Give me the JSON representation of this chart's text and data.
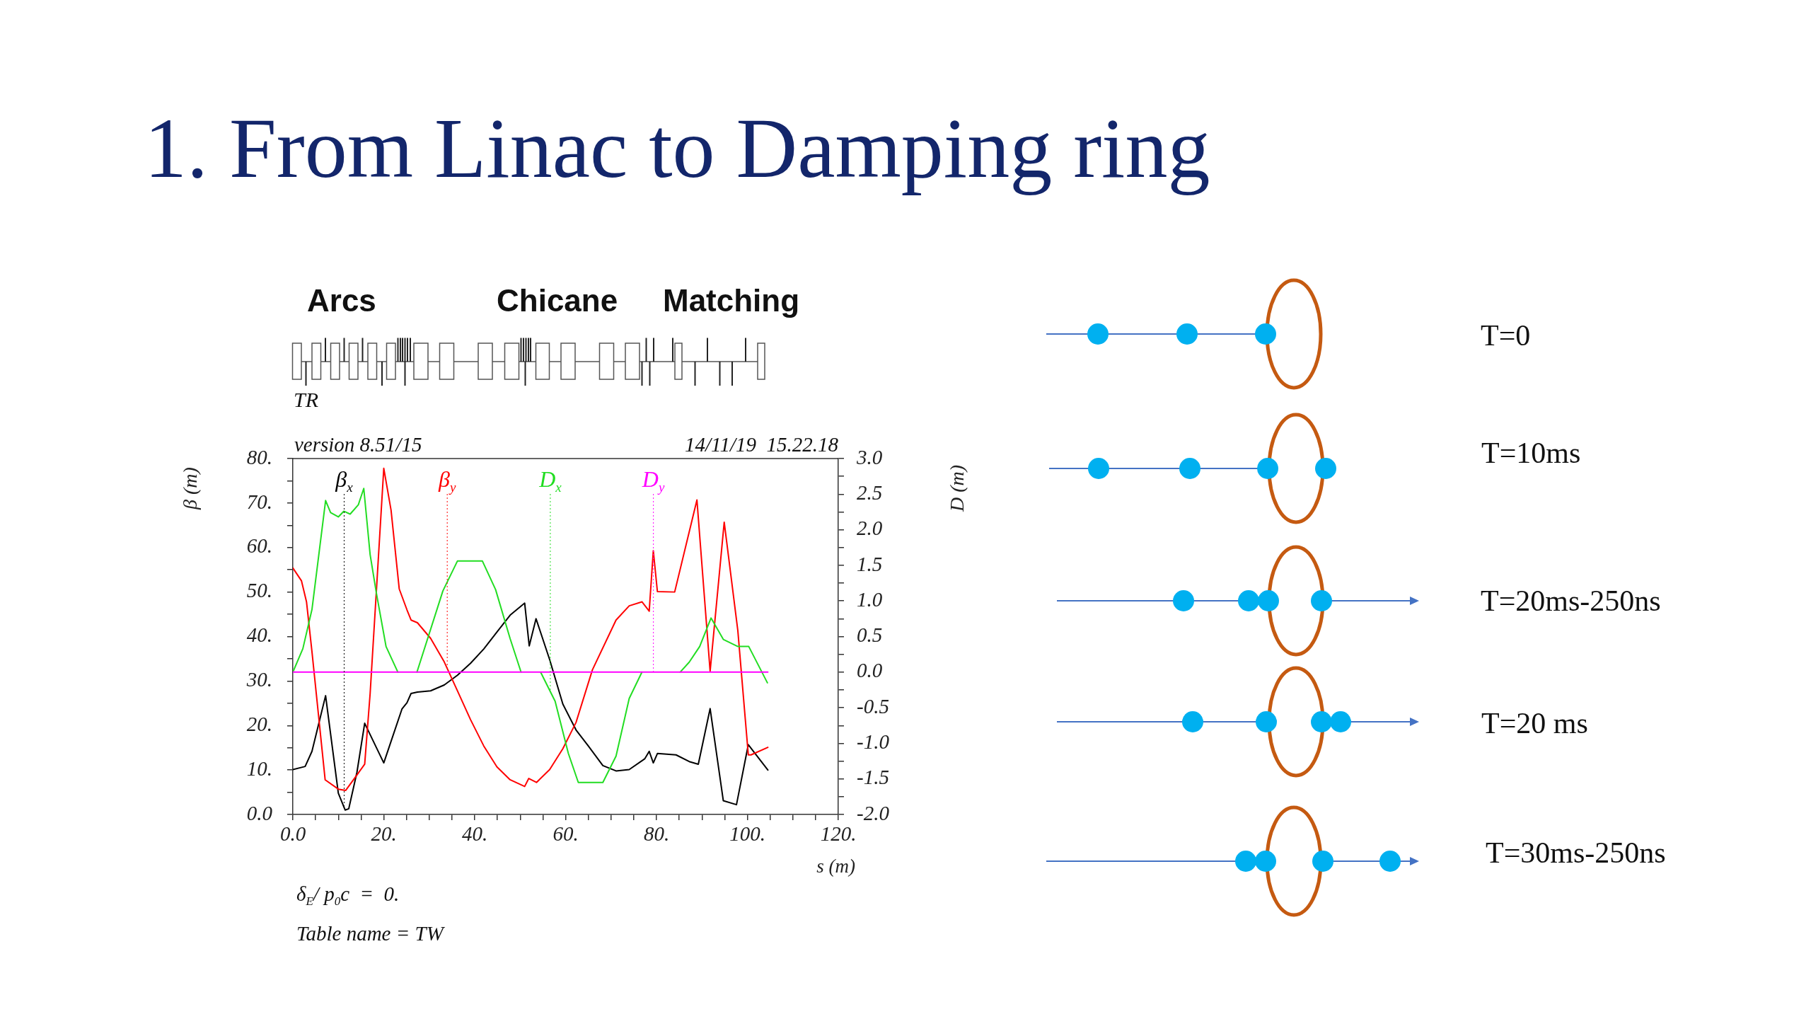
{
  "chart_data": {
    "type": "line",
    "title": "1. From Linac to Damping ring",
    "xlabel": "s (m)",
    "ylabel": "β (m)",
    "y2label": "D (m)",
    "marker": "none",
    "xlim": [
      0,
      120
    ],
    "xticks": [
      {
        "value": 0,
        "label": "0.0"
      },
      {
        "value": 5,
        "label": null
      },
      {
        "value": 10,
        "label": null
      },
      {
        "value": 15,
        "label": null
      },
      {
        "value": 20,
        "label": "20."
      },
      {
        "value": 25,
        "label": null
      },
      {
        "value": 30,
        "label": null
      },
      {
        "value": 35,
        "label": null
      },
      {
        "value": 40,
        "label": "40."
      },
      {
        "value": 45,
        "label": null
      },
      {
        "value": 50,
        "label": null
      },
      {
        "value": 55,
        "label": null
      },
      {
        "value": 60,
        "label": "60."
      },
      {
        "value": 65,
        "label": null
      },
      {
        "value": 70,
        "label": null
      },
      {
        "value": 75,
        "label": null
      },
      {
        "value": 80,
        "label": "80."
      },
      {
        "value": 85,
        "label": null
      },
      {
        "value": 90,
        "label": null
      },
      {
        "value": 95,
        "label": null
      },
      {
        "value": 100,
        "label": "100."
      },
      {
        "value": 105,
        "label": null
      },
      {
        "value": 110,
        "label": null
      },
      {
        "value": 115,
        "label": null
      },
      {
        "value": 120,
        "label": "120."
      }
    ],
    "ylim": [
      0,
      80
    ],
    "yticks": [
      {
        "value": 0,
        "label": "0.0"
      },
      {
        "value": 5,
        "label": null
      },
      {
        "value": 10,
        "label": "10."
      },
      {
        "value": 15,
        "label": null
      },
      {
        "value": 20,
        "label": "20."
      },
      {
        "value": 25,
        "label": null
      },
      {
        "value": 30,
        "label": "30."
      },
      {
        "value": 35,
        "label": null
      },
      {
        "value": 40,
        "label": "40."
      },
      {
        "value": 45,
        "label": null
      },
      {
        "value": 50,
        "label": "50."
      },
      {
        "value": 55,
        "label": null
      },
      {
        "value": 60,
        "label": "60."
      },
      {
        "value": 65,
        "label": null
      },
      {
        "value": 70,
        "label": "70."
      },
      {
        "value": 75,
        "label": null
      },
      {
        "value": 80,
        "label": "80."
      }
    ],
    "y2lim": [
      -2,
      3
    ],
    "y2ticks": [
      {
        "value": -2,
        "label": "-2.0"
      },
      {
        "value": -1.75,
        "label": null
      },
      -1.5,
      {
        "value": -1.25,
        "label": null
      },
      {
        "value": -1,
        "label": "-1.0"
      },
      {
        "value": -0.75,
        "label": null
      },
      -0.5,
      {
        "value": -0.25,
        "label": null
      },
      {
        "value": 0,
        "label": "0.0"
      },
      {
        "value": 0.25,
        "label": null
      },
      0.5,
      {
        "value": 0.75,
        "label": null
      },
      {
        "value": 1,
        "label": "1.0"
      },
      {
        "value": 1.25,
        "label": null
      },
      1.5,
      {
        "value": 1.75,
        "label": null
      },
      {
        "value": 2,
        "label": "2.0"
      },
      {
        "value": 2.25,
        "label": null
      },
      2.5,
      {
        "value": 2.75,
        "label": null
      },
      {
        "value": 3,
        "label": "3.0"
      }
    ],
    "series": [
      {
        "name": "β$_{x}$",
        "color": "#000000",
        "x": [
          0,
          2.7,
          4.2,
          7.2,
          10,
          11.5,
          12.3,
          14.1,
          15.8,
          20,
          24,
          25.1,
          26,
          27.4,
          30.3,
          33.3,
          36.2,
          39.1,
          42,
          44.9,
          47.8,
          51,
          52,
          53.5,
          56.5,
          59.4,
          62.3,
          65,
          68.2,
          71.1,
          74,
          77.4,
          78.4,
          79.3,
          80.2,
          84.3,
          87.2,
          89.2,
          91.8,
          94.7,
          97.6,
          100.2,
          104.5
        ],
        "values": [
          10.1,
          10.8,
          14.2,
          26.7,
          4.8,
          1.0,
          1.3,
          9.5,
          20.5,
          11.6,
          23.7,
          25.1,
          27.2,
          27.5,
          27.8,
          29.1,
          31.3,
          34,
          37.2,
          41,
          44.8,
          47.5,
          37.9,
          44,
          34.8,
          24.8,
          19,
          15.4,
          11,
          9.8,
          10.1,
          12.5,
          14.2,
          11.6,
          13.7,
          13.4,
          11.9,
          11.3,
          23.8,
          3.1,
          2.2,
          15.7,
          10
        ]
      },
      {
        "name": "β$_{y}$",
        "color": "#ff0000",
        "x": [
          0,
          1.9,
          3,
          4.2,
          7.1,
          10,
          11.6,
          14.1,
          15.8,
          17,
          18.4,
          20,
          21.6,
          23.4,
          25.1,
          26,
          27.4,
          30.3,
          33.3,
          36.2,
          39.1,
          42,
          44.9,
          47.8,
          51,
          51.9,
          53.6,
          56.5,
          59.4,
          62.3,
          65.9,
          71.1,
          74,
          76.8,
          78.4,
          79.3,
          80.2,
          84,
          88.9,
          91.8,
          94.9,
          97.9,
          100.2,
          100.8,
          104.5
        ],
        "values": [
          55.4,
          52.5,
          47.8,
          36.6,
          7.8,
          5.7,
          5.4,
          8.9,
          11.3,
          27.2,
          50.7,
          77.8,
          68.4,
          50.7,
          46,
          43.7,
          43.1,
          39.6,
          34.3,
          27.8,
          21.3,
          15.4,
          10.7,
          7.8,
          6.3,
          8.1,
          7.2,
          10.1,
          14.8,
          20.7,
          32.5,
          43.7,
          46.9,
          47.8,
          45.7,
          59.3,
          50.1,
          50,
          70.7,
          32.2,
          65.7,
          41.3,
          13.4,
          13.4,
          15.1
        ]
      },
      {
        "name": "D$_{x}$",
        "color": "#22dd22",
        "axis": "y2",
        "x": [
          0,
          2.2,
          4.2,
          7.2,
          8.3,
          10,
          11.2,
          12.6,
          14.4,
          15.6,
          17,
          18.4,
          20.5,
          23.1,
          25.2,
          27.3,
          33,
          36.2,
          41.7,
          44.6,
          47.8,
          50.2,
          52.3,
          54.5,
          57.7,
          60.6,
          62.8,
          68.2,
          71.1,
          74,
          76.8,
          81,
          85.2,
          87.2,
          89.5,
          92,
          94.7,
          97.9,
          100.3,
          104.4
        ],
        "values": [
          0,
          0.33,
          0.88,
          2.41,
          2.24,
          2.18,
          2.26,
          2.22,
          2.35,
          2.58,
          1.65,
          1.1,
          0.36,
          0,
          null,
          0,
          1.14,
          1.56,
          1.56,
          1.16,
          0.47,
          0,
          null,
          0,
          -0.41,
          -1.14,
          -1.55,
          -1.55,
          -1.18,
          -0.37,
          0,
          null,
          0,
          0.14,
          0.36,
          0.76,
          0.46,
          0.36,
          0.36,
          -0.15
        ]
      },
      {
        "name": "D$_{y}$",
        "color": "#ff00ff",
        "axis": "y2",
        "x": [
          0,
          104.5
        ],
        "values": [
          0,
          0
        ]
      }
    ],
    "annotations": [
      "Arcs",
      "Chicane",
      "Matching",
      "TR",
      "version 8.51/15",
      "14/11/19  15.22.18",
      "δ$_{E}$/ p$_{0}$c  =  0.",
      "Table name = TW",
      "T=0",
      "T=10ms",
      "T=20ms-250ns",
      "T=20 ms",
      "T=30ms-250ns"
    ]
  }
}
